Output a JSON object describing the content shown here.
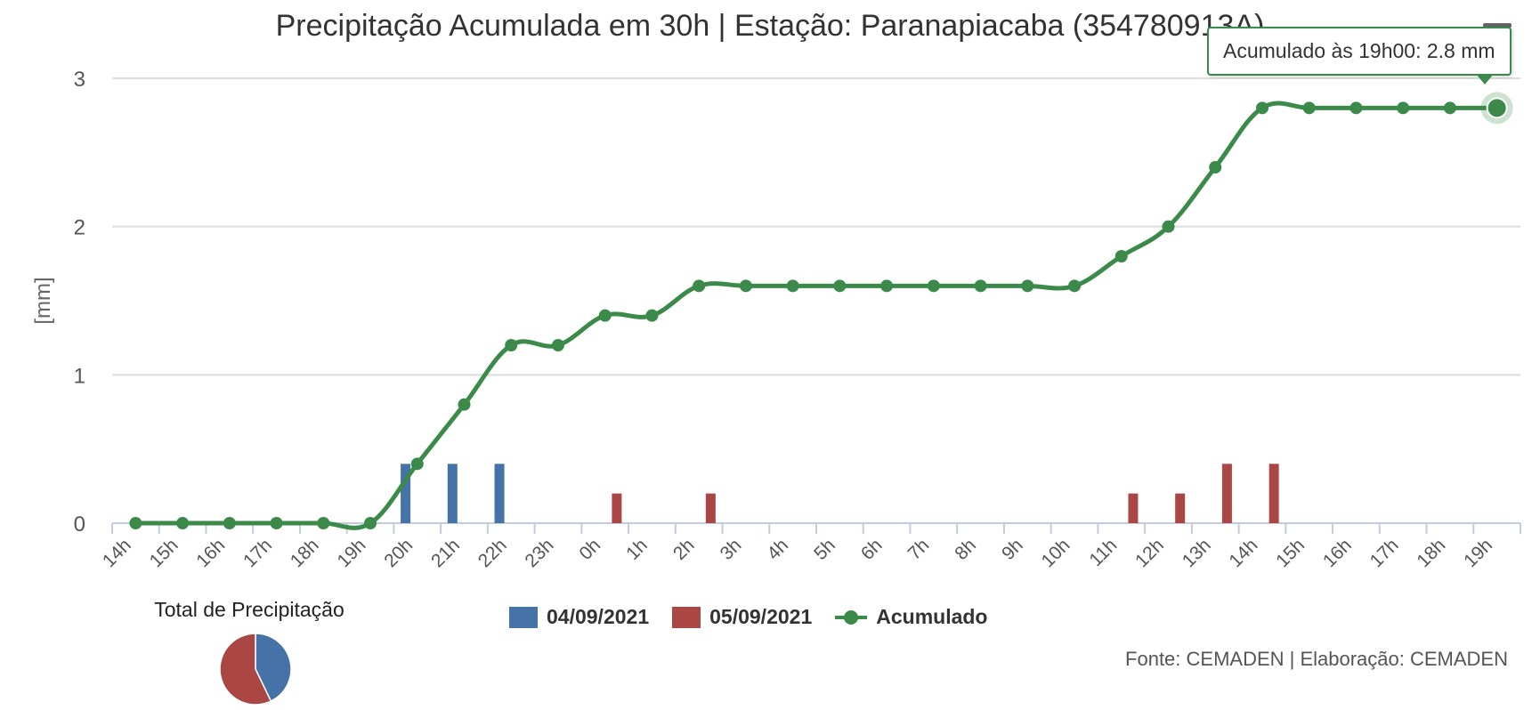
{
  "header": {
    "title": "Precipitação Acumulada em 30h | Estação: Paranapiacaba (354780913A)"
  },
  "tooltip": {
    "text": "Acumulado às 19h00: 2.8 mm"
  },
  "pie": {
    "title": "Total de Precipitação",
    "slices": [
      {
        "name": "04/09/2021",
        "value": 1.2,
        "color": "#4572a7"
      },
      {
        "name": "05/09/2021",
        "value": 1.6,
        "color": "#aa4643"
      }
    ]
  },
  "legend": {
    "items": [
      "04/09/2021",
      "05/09/2021",
      "Acumulado"
    ]
  },
  "source": "Fonte: CEMADEN | Elaboração: CEMADEN",
  "colors": {
    "day1": "#4572a7",
    "day2": "#aa4643",
    "accumulated": "#3b8a4a",
    "grid": "#dcdcdc",
    "axis": "#c0cce0"
  },
  "chart_data": {
    "type": "bar",
    "categories": [
      "14h",
      "15h",
      "16h",
      "17h",
      "18h",
      "19h",
      "20h",
      "21h",
      "22h",
      "23h",
      "0h",
      "1h",
      "2h",
      "3h",
      "4h",
      "5h",
      "6h",
      "7h",
      "8h",
      "9h",
      "10h",
      "11h",
      "12h",
      "13h",
      "14h",
      "15h",
      "16h",
      "17h",
      "18h",
      "19h"
    ],
    "ylabel": "[mm]",
    "ylim": [
      0,
      3
    ],
    "yticks": [
      0,
      1,
      2,
      3
    ],
    "grid": true,
    "legend_position": "bottom",
    "series": [
      {
        "name": "04/09/2021",
        "type": "bar",
        "values": [
          0,
          0,
          0,
          0,
          0,
          0,
          0.4,
          0.4,
          0.4,
          0,
          0,
          0,
          0,
          0,
          0,
          0,
          0,
          0,
          0,
          0,
          0,
          0,
          0,
          0,
          0,
          0,
          0,
          0,
          0,
          0
        ]
      },
      {
        "name": "05/09/2021",
        "type": "bar",
        "values": [
          0,
          0,
          0,
          0,
          0,
          0,
          0,
          0,
          0,
          0,
          0.2,
          0,
          0.2,
          0,
          0,
          0,
          0,
          0,
          0,
          0,
          0,
          0.2,
          0.2,
          0.4,
          0.4,
          0,
          0,
          0,
          0,
          0
        ]
      },
      {
        "name": "Acumulado",
        "type": "line",
        "values": [
          0,
          0,
          0,
          0,
          0,
          0,
          0.4,
          0.8,
          1.2,
          1.2,
          1.4,
          1.4,
          1.6,
          1.6,
          1.6,
          1.6,
          1.6,
          1.6,
          1.6,
          1.6,
          1.6,
          1.8,
          2.0,
          2.4,
          2.8,
          2.8,
          2.8,
          2.8,
          2.8,
          2.8
        ]
      }
    ]
  }
}
